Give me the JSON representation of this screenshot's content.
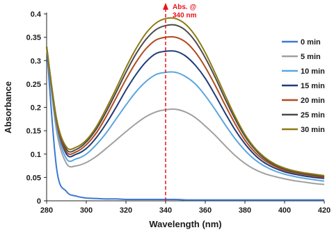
{
  "chart_data": {
    "type": "line",
    "xlabel": "Wavelength (nm)",
    "ylabel": "Absorbance",
    "xlim": [
      280,
      420
    ],
    "ylim": [
      0,
      0.4
    ],
    "x_ticks": [
      280,
      300,
      320,
      340,
      360,
      380,
      400,
      420
    ],
    "y_ticks": [
      0,
      0.05,
      0.1,
      0.15,
      0.2,
      0.25,
      0.3,
      0.35,
      0.4
    ],
    "y_tick_labels": [
      "0",
      "0.05",
      "0.1",
      "0.15",
      "0.2",
      "0.25",
      "0.3",
      "0.35",
      "0.4"
    ],
    "grid": false,
    "legend_position": "right",
    "annotation": {
      "line1": "Abs. @",
      "line2": "340 nm",
      "x": 340,
      "color": "#e8141b"
    },
    "x": [
      280,
      285,
      290,
      295,
      300,
      305,
      310,
      315,
      320,
      325,
      330,
      335,
      340,
      345,
      350,
      355,
      360,
      365,
      370,
      375,
      380,
      385,
      390,
      395,
      400,
      405,
      410,
      415,
      420
    ],
    "series": [
      {
        "name": "0 min",
        "color": "#3b78d0",
        "values": [
          0.33,
          0.07,
          0.02,
          0.01,
          0.006,
          0.005,
          0.004,
          0.004,
          0.003,
          0.003,
          0.003,
          0.003,
          0.003,
          0.003,
          0.002,
          0.002,
          0.002,
          0.002,
          0.002,
          0.002,
          0.002,
          0.002,
          0.002,
          0.002,
          0.002,
          0.002,
          0.002,
          0.002,
          0.002
        ]
      },
      {
        "name": "5 min",
        "color": "#a0a0a0",
        "values": [
          0.33,
          0.15,
          0.08,
          0.075,
          0.082,
          0.095,
          0.112,
          0.13,
          0.148,
          0.165,
          0.18,
          0.19,
          0.195,
          0.196,
          0.19,
          0.178,
          0.16,
          0.14,
          0.118,
          0.097,
          0.08,
          0.067,
          0.058,
          0.052,
          0.047,
          0.043,
          0.04,
          0.037,
          0.035
        ]
      },
      {
        "name": "10 min",
        "color": "#5aa5e0",
        "values": [
          0.33,
          0.16,
          0.09,
          0.09,
          0.1,
          0.12,
          0.145,
          0.175,
          0.205,
          0.233,
          0.255,
          0.27,
          0.275,
          0.275,
          0.266,
          0.25,
          0.225,
          0.195,
          0.163,
          0.133,
          0.108,
          0.088,
          0.074,
          0.064,
          0.057,
          0.052,
          0.048,
          0.045,
          0.042
        ]
      },
      {
        "name": "15 min",
        "color": "#1f3c78",
        "values": [
          0.33,
          0.17,
          0.1,
          0.1,
          0.112,
          0.135,
          0.165,
          0.2,
          0.237,
          0.27,
          0.297,
          0.315,
          0.32,
          0.32,
          0.31,
          0.29,
          0.262,
          0.226,
          0.188,
          0.152,
          0.122,
          0.098,
          0.081,
          0.07,
          0.062,
          0.057,
          0.053,
          0.05,
          0.048
        ]
      },
      {
        "name": "20 min",
        "color": "#b24a1e",
        "values": [
          0.33,
          0.17,
          0.105,
          0.105,
          0.12,
          0.145,
          0.18,
          0.22,
          0.26,
          0.296,
          0.325,
          0.344,
          0.35,
          0.35,
          0.34,
          0.318,
          0.286,
          0.247,
          0.205,
          0.165,
          0.13,
          0.104,
          0.086,
          0.074,
          0.065,
          0.06,
          0.056,
          0.053,
          0.05
        ]
      },
      {
        "name": "25 min",
        "color": "#4a4a4a",
        "values": [
          0.33,
          0.175,
          0.11,
          0.11,
          0.126,
          0.153,
          0.19,
          0.232,
          0.275,
          0.314,
          0.345,
          0.366,
          0.375,
          0.376,
          0.365,
          0.341,
          0.306,
          0.264,
          0.218,
          0.175,
          0.138,
          0.11,
          0.09,
          0.077,
          0.068,
          0.062,
          0.058,
          0.055,
          0.052
        ]
      },
      {
        "name": "30 min",
        "color": "#8c7a12",
        "values": [
          0.33,
          0.175,
          0.115,
          0.115,
          0.13,
          0.158,
          0.197,
          0.24,
          0.285,
          0.325,
          0.358,
          0.38,
          0.39,
          0.39,
          0.378,
          0.353,
          0.317,
          0.273,
          0.226,
          0.181,
          0.142,
          0.113,
          0.093,
          0.079,
          0.07,
          0.064,
          0.06,
          0.057,
          0.054
        ]
      }
    ]
  }
}
